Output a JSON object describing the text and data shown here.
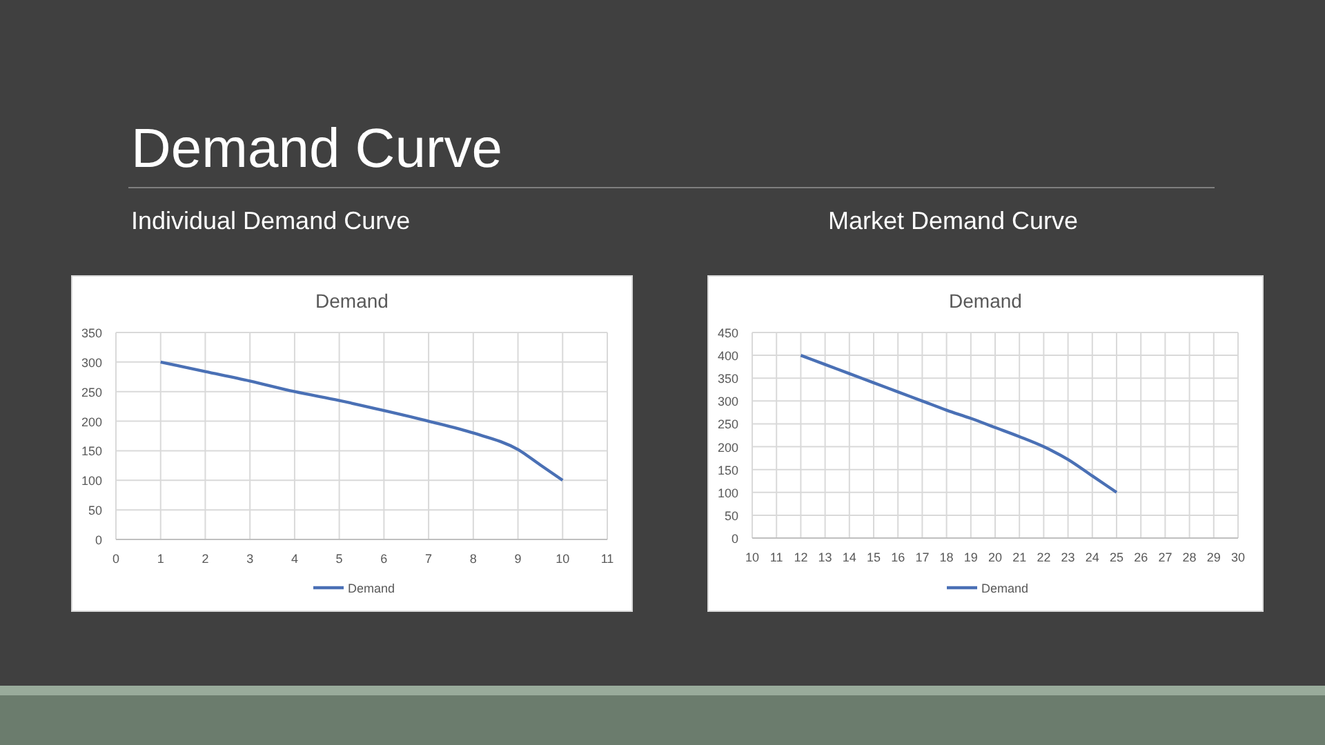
{
  "chart_data": [
    {
      "type": "line",
      "title": "Demand",
      "subtitle": "Individual Demand Curve",
      "annotations": [
        "Demand Curve"
      ],
      "x": [
        1,
        2,
        3,
        4,
        5,
        6,
        7,
        8,
        9,
        9.5,
        10
      ],
      "series": [
        {
          "name": "Demand",
          "color": "#4a70b5",
          "values": [
            300,
            284,
            268,
            250,
            235,
            218,
            200,
            180,
            152,
            126,
            100
          ]
        }
      ],
      "xlim": [
        0,
        11
      ],
      "xticks": [
        0,
        1,
        2,
        3,
        4,
        5,
        6,
        7,
        8,
        9,
        10,
        11
      ],
      "ylim": [
        0,
        350
      ],
      "yticks": [
        0,
        50,
        100,
        150,
        200,
        250,
        300,
        350
      ],
      "grid": true,
      "legend": "bottom",
      "marker": "none"
    },
    {
      "type": "line",
      "title": "Demand",
      "subtitle": "Market Demand Curve",
      "x": [
        12,
        13,
        14,
        15,
        16,
        17,
        18,
        19,
        20,
        21,
        22,
        23,
        24,
        25
      ],
      "series": [
        {
          "name": "Demand",
          "color": "#4a70b5",
          "values": [
            400,
            380,
            360,
            340,
            320,
            300,
            280,
            262,
            242,
            222,
            200,
            172,
            136,
            100
          ]
        }
      ],
      "xlim": [
        10,
        30
      ],
      "xticks": [
        10,
        11,
        12,
        13,
        14,
        15,
        16,
        17,
        18,
        19,
        20,
        21,
        22,
        23,
        24,
        25,
        26,
        27,
        28,
        29,
        30
      ],
      "ylim": [
        0,
        450
      ],
      "yticks": [
        0,
        50,
        100,
        150,
        200,
        250,
        300,
        350,
        400,
        450
      ],
      "grid": true,
      "legend": "bottom",
      "marker": "none"
    }
  ]
}
